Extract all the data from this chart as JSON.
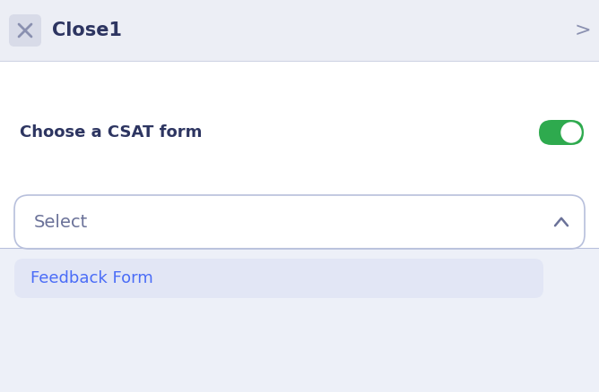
{
  "bg_color": "#eef0f7",
  "header_bg": "#eceef5",
  "header_text": "Close1",
  "header_text_color": "#2d3561",
  "header_font_size": 15,
  "x_icon_color": "#8a90b0",
  "x_box_color": "#d8dbe8",
  "chevron_right_color": "#8a90b0",
  "divider_color": "#d0d4e4",
  "body_bg": "#ffffff",
  "label_text": "Choose a CSAT form",
  "label_color": "#2d3561",
  "label_font_size": 13,
  "toggle_green": "#2eaa4e",
  "toggle_white": "#ffffff",
  "select_box_bg": "#ffffff",
  "select_box_border": "#b8c0dc",
  "select_text": "Select",
  "select_text_color": "#6b7299",
  "select_font_size": 14,
  "chevron_up_color": "#6b7299",
  "dropdown_bg": "#edf0f8",
  "dropdown_item_bg": "#e2e6f5",
  "dropdown_item_text": "Feedback Form",
  "dropdown_item_color": "#4a6cf7",
  "dropdown_font_size": 13
}
